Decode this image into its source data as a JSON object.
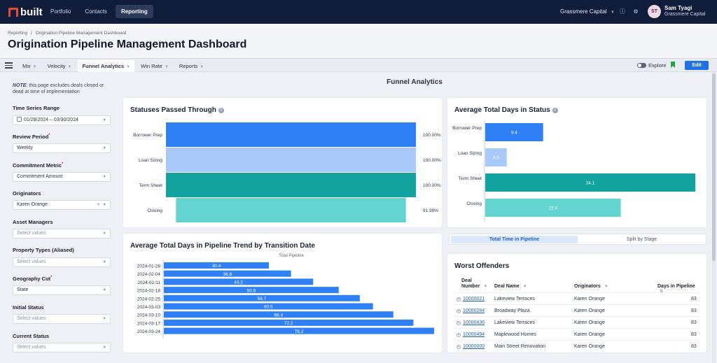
{
  "app": {
    "logo": "built"
  },
  "nav": [
    {
      "label": "Portfolio"
    },
    {
      "label": "Contacts"
    },
    {
      "label": "Reporting"
    }
  ],
  "org": "Grassmere Capital",
  "user": {
    "initials": "ST",
    "name": "Sam Tyagi",
    "org": "Grassmere Capital"
  },
  "breadcrumb": {
    "parent": "Reporting",
    "sep": "/",
    "current": "Origination Pipeline Management Dashboard"
  },
  "page_title": "Origination Pipeline Management Dashboard",
  "tabs": [
    {
      "label": "Mix"
    },
    {
      "label": "Velocity"
    },
    {
      "label": "Funnel Analytics"
    },
    {
      "label": "Win Rate"
    },
    {
      "label": "Reports"
    }
  ],
  "toolbar": {
    "explore": "Explore",
    "edit": "Edit"
  },
  "note": {
    "prefix": "NOTE",
    "text": ": this page excludes deals closed or dead at time of implementation"
  },
  "filters": {
    "time_series": {
      "label": "Time Series Range",
      "value": "01/28/2024 – 03/30/2024"
    },
    "review_period": {
      "label": "Review Period",
      "required": "*",
      "value": "Weekly"
    },
    "commitment_metric": {
      "label": "Commitment Metric",
      "required": "*",
      "value": "Commitment Amount"
    },
    "originators": {
      "label": "Originators",
      "value": "Karen Orange"
    },
    "asset_managers": {
      "label": "Asset Managers",
      "placeholder": "Select values"
    },
    "property_types": {
      "label": "Property Types (Aliased)",
      "placeholder": "Select values"
    },
    "geography_cut": {
      "label": "Geography Cut",
      "required": "*",
      "value": "State"
    },
    "initial_status": {
      "label": "Initial Status",
      "placeholder": "Select values"
    },
    "current_status": {
      "label": "Current Status",
      "placeholder": "Select values"
    }
  },
  "section_title": "Funnel Analytics",
  "charts": {
    "statuses": {
      "title": "Statuses Passed Through",
      "categories": [
        "Borrower Prep",
        "Loan Sizing",
        "Term Sheet",
        "Closing"
      ],
      "labels": [
        "100.00%",
        "100.00%",
        "100.00%",
        "91.99%"
      ],
      "colors": [
        "#2f80f5",
        "#a9c9fb",
        "#12a39e",
        "#63d4d0"
      ]
    },
    "avg_days": {
      "title": "Average Total Days in Status",
      "categories": [
        "Borrower Prep",
        "Loan Sizing",
        "Term Sheet",
        "Closing"
      ],
      "labels": [
        "9.4",
        "3.5",
        "34.1",
        "22.0"
      ],
      "colors": [
        "#2f80f5",
        "#a9c9fb",
        "#12a39e",
        "#63d4d0"
      ]
    },
    "trend": {
      "title": "Average Total Days in Pipeline Trend by Transition Date",
      "legend": "Total Pipeline",
      "categories": [
        "2024-01-28",
        "2024-02-04",
        "2024-02-11",
        "2024-02-18",
        "2024-02-25",
        "2024-03-03",
        "2024-03-10",
        "2024-03-17",
        "2024-03-24"
      ],
      "labels": [
        "30.4",
        "36.8",
        "43.2",
        "50.6",
        "56.7",
        "60.5",
        "66.4",
        "72.2",
        "78.2"
      ],
      "color": "#2f80f5"
    }
  },
  "chart_data": [
    {
      "type": "bar",
      "title": "Statuses Passed Through",
      "categories": [
        "Borrower Prep",
        "Loan Sizing",
        "Term Sheet",
        "Closing"
      ],
      "values": [
        100.0,
        100.0,
        100.0,
        91.99
      ]
    },
    {
      "type": "bar",
      "title": "Average Total Days in Status",
      "categories": [
        "Borrower Prep",
        "Loan Sizing",
        "Term Sheet",
        "Closing"
      ],
      "values": [
        9.4,
        3.5,
        34.1,
        22.0
      ]
    },
    {
      "type": "bar",
      "title": "Average Total Days in Pipeline Trend by Transition Date",
      "categories": [
        "2024-01-28",
        "2024-02-04",
        "2024-02-11",
        "2024-02-18",
        "2024-02-25",
        "2024-03-03",
        "2024-03-10",
        "2024-03-17",
        "2024-03-24"
      ],
      "series": [
        {
          "name": "Total Pipeline",
          "values": [
            30.4,
            36.8,
            43.2,
            50.6,
            56.7,
            60.5,
            66.4,
            72.2,
            78.2
          ]
        }
      ]
    }
  ],
  "segment": {
    "options": [
      "Total Time in Pipeline",
      "Split by Stage"
    ]
  },
  "worst_offenders": {
    "title": "Worst Offenders",
    "columns": {
      "deal_top": "Deal",
      "deal_bottom": "Number",
      "deal_name": "Deal Name",
      "originators": "Originators",
      "days": "Days in Pipeline"
    },
    "rows": [
      {
        "deal": "10000021",
        "name": "Lakeview Terraces",
        "originator": "Karen Orange",
        "days": "83"
      },
      {
        "deal": "10000284",
        "name": "Broadway Plaza",
        "originator": "Karen Orange",
        "days": "83"
      },
      {
        "deal": "10000436",
        "name": "Lakeview Terraces",
        "originator": "Karen Orange",
        "days": "83"
      },
      {
        "deal": "10000494",
        "name": "Maplewood Homes",
        "originator": "Karen Orange",
        "days": "83"
      },
      {
        "deal": "10000000",
        "name": "Main Street Renovation",
        "originator": "Karen Orange",
        "days": "83"
      }
    ]
  }
}
